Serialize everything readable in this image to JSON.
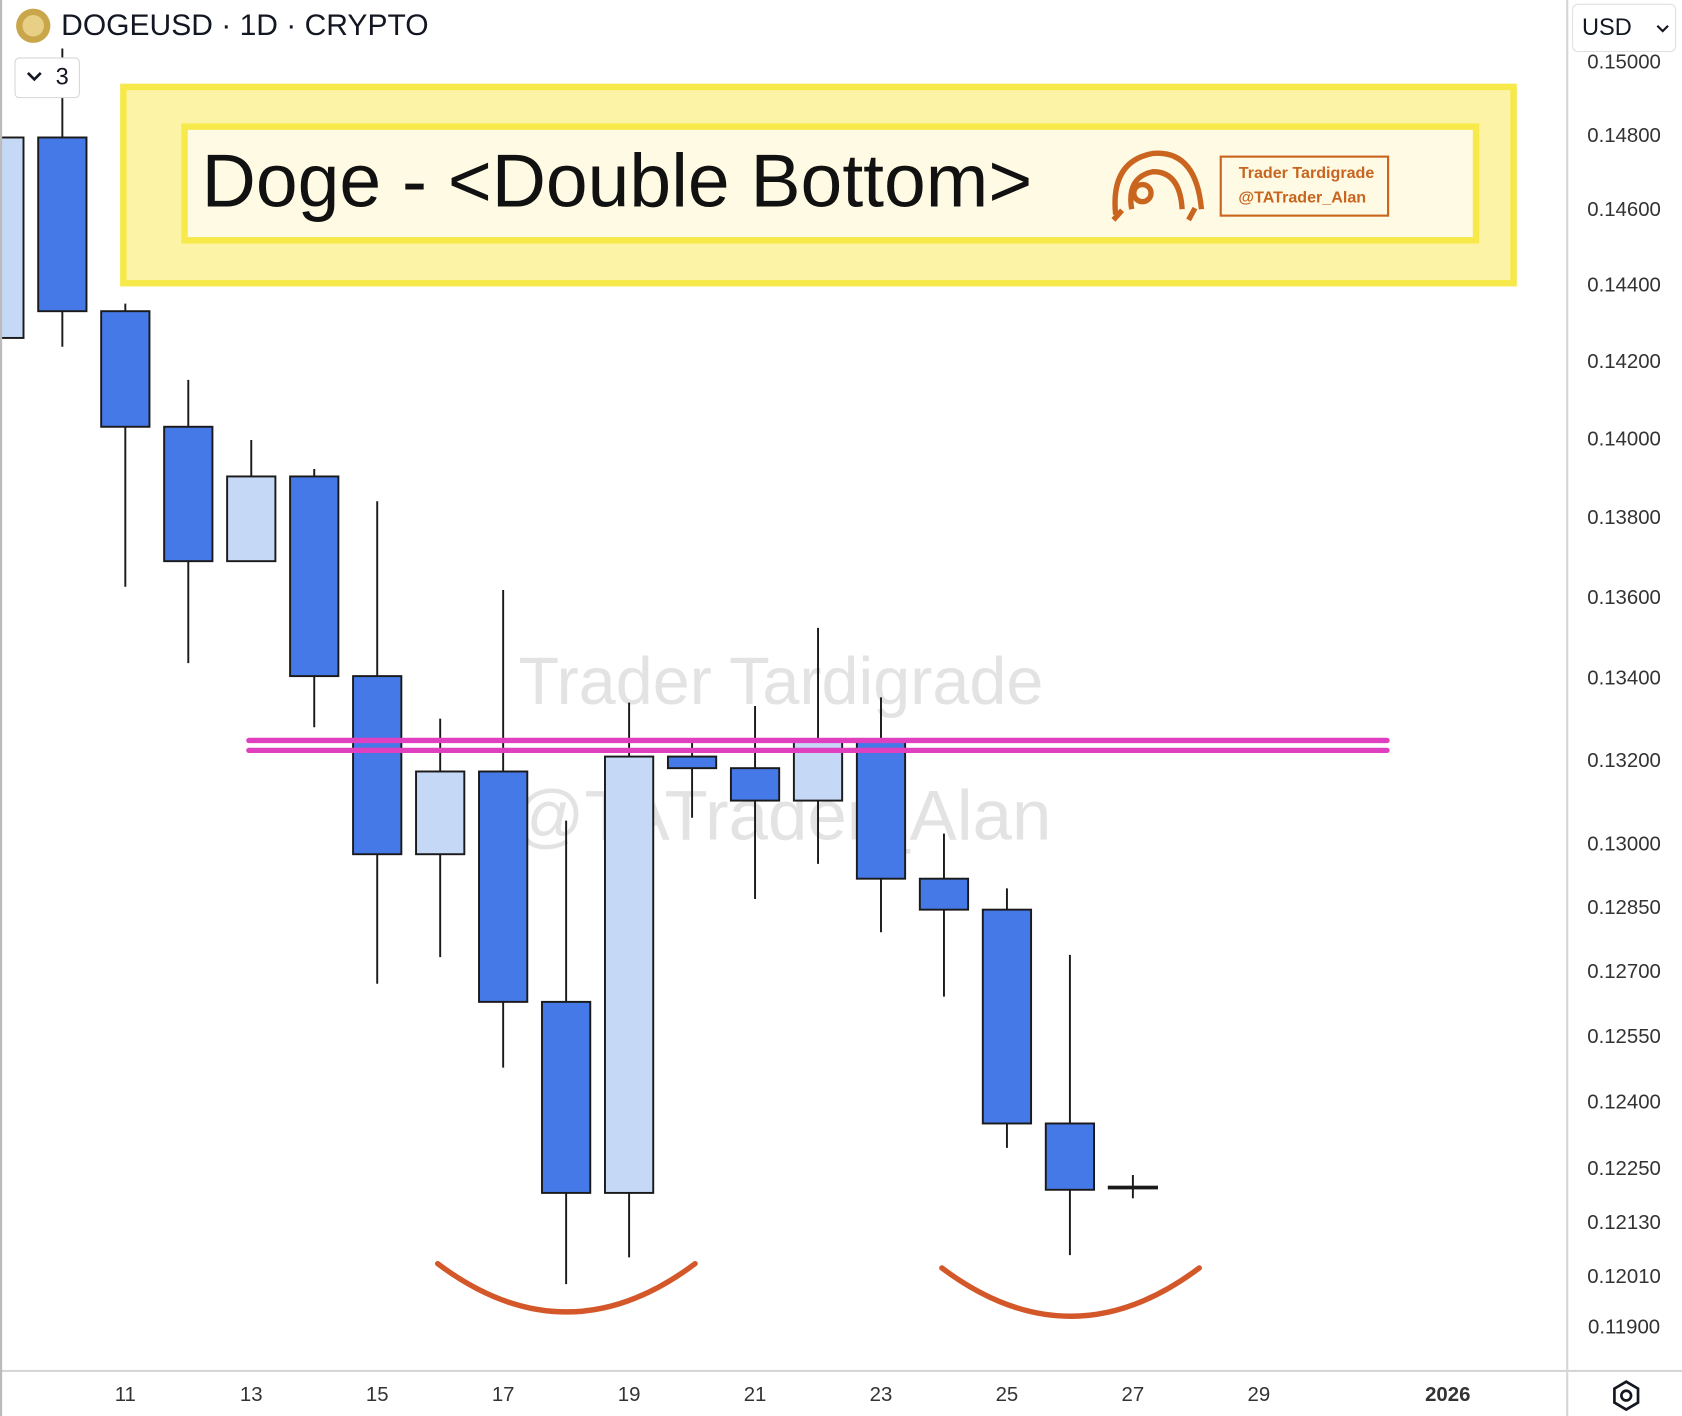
{
  "header": {
    "symbol": "DOGEUSD · 1D · CRYPTO",
    "indicator_count": "3",
    "currency": "USD"
  },
  "chart_data": {
    "type": "candlestick",
    "title": "Doge - <Double Bottom>",
    "watermark": [
      "Trader Tardigrade",
      "@TATrader_Alan"
    ],
    "logo_text": [
      "Trader Tardigrade",
      "@TATrader_Alan"
    ],
    "log_scale": true,
    "grid": false,
    "up_color": "#c5d8f5",
    "down_color": "#4679e8",
    "x": [
      9,
      10,
      11,
      12,
      13,
      14,
      15,
      16,
      17,
      18,
      19,
      20,
      21,
      22,
      23,
      24,
      25,
      26,
      27
    ],
    "open": [
      0.14264,
      0.14797,
      0.14334,
      0.14034,
      0.13693,
      0.13907,
      0.13408,
      0.12978,
      0.13176,
      0.12632,
      0.12198,
      0.13212,
      0.13184,
      0.13106,
      0.13249,
      0.1292,
      0.12847,
      0.12354,
      0.12212
    ],
    "high": [
      0.14797,
      0.1504,
      0.14354,
      0.14155,
      0.14,
      0.13926,
      0.13844,
      0.13304,
      0.13621,
      0.13058,
      0.13343,
      0.13251,
      0.13335,
      0.13527,
      0.13356,
      0.13027,
      0.12897,
      0.12741,
      0.12238
    ],
    "low": [
      0.14264,
      0.14241,
      0.13629,
      0.1344,
      0.13693,
      0.13283,
      0.12674,
      0.12736,
      0.12481,
      0.11996,
      0.12055,
      0.13065,
      0.12872,
      0.12955,
      0.12794,
      0.12644,
      0.12299,
      0.1206,
      0.12186
    ],
    "close": [
      0.14797,
      0.14334,
      0.14034,
      0.13693,
      0.13907,
      0.13408,
      0.12978,
      0.13176,
      0.12632,
      0.12198,
      0.13212,
      0.13184,
      0.13106,
      0.13249,
      0.1292,
      0.12847,
      0.12354,
      0.12205,
      0.12208
    ],
    "hlines": {
      "values": [
        0.13251,
        0.13227
      ],
      "color": "#e040c0"
    },
    "xlim": [
      9.01,
      33.88
    ],
    "xticks": [
      11,
      13,
      15,
      17,
      19,
      21,
      23,
      25,
      27,
      29,
      {
        "value": 32,
        "label": "2026"
      }
    ],
    "ylim": [
      0.11807,
      0.15174
    ],
    "yticks": [
      {
        "value": 0.15,
        "label": "0.15000"
      },
      {
        "value": 0.148,
        "label": "0.14800"
      },
      {
        "value": 0.146,
        "label": "0.14600"
      },
      {
        "value": 0.144,
        "label": "0.14400"
      },
      {
        "value": 0.142,
        "label": "0.14200"
      },
      {
        "value": 0.14,
        "label": "0.14000"
      },
      {
        "value": 0.138,
        "label": "0.13800"
      },
      {
        "value": 0.136,
        "label": "0.13600"
      },
      {
        "value": 0.134,
        "label": "0.13400"
      },
      {
        "value": 0.132,
        "label": "0.13200"
      },
      {
        "value": 0.13,
        "label": "0.13000"
      },
      {
        "value": 0.1285,
        "label": "0.12850"
      },
      {
        "value": 0.127,
        "label": "0.12700"
      },
      {
        "value": 0.1255,
        "label": "0.12550"
      },
      {
        "value": 0.124,
        "label": "0.12400"
      },
      {
        "value": 0.1225,
        "label": "0.12250"
      },
      {
        "value": 0.1213,
        "label": "0.12130"
      },
      {
        "value": 0.1201,
        "label": "0.12010"
      },
      {
        "value": 0.119,
        "label": "0.11900"
      }
    ]
  }
}
